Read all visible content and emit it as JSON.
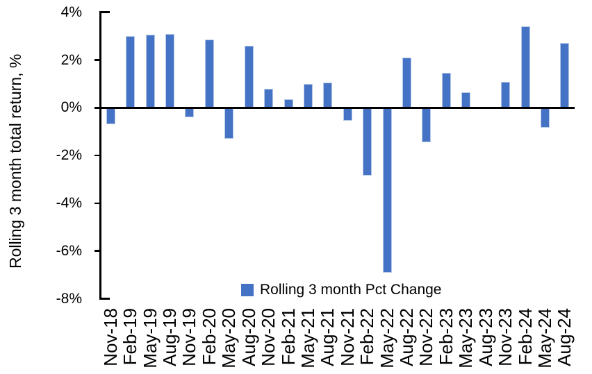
{
  "chart_data": {
    "type": "bar",
    "title": "",
    "ylabel": "Rolling 3 month total return, %",
    "xlabel": "",
    "ylim": [
      -8,
      4
    ],
    "grid": false,
    "yticks": [
      {
        "value": 4,
        "label": "4%"
      },
      {
        "value": 2,
        "label": "2%"
      },
      {
        "value": 0,
        "label": "0%"
      },
      {
        "value": -2,
        "label": "-2%"
      },
      {
        "value": -4,
        "label": "-4%"
      },
      {
        "value": -6,
        "label": "-6%"
      },
      {
        "value": -8,
        "label": "-8%"
      }
    ],
    "categories": [
      "Nov-18",
      "Feb-19",
      "May-19",
      "Aug-19",
      "Nov-19",
      "Feb-20",
      "May-20",
      "Aug-20",
      "Nov-20",
      "Feb-21",
      "May-21",
      "Aug-21",
      "Nov-21",
      "Feb-22",
      "May-22",
      "Aug-22",
      "Nov-22",
      "Feb-23",
      "May-23",
      "Aug-23",
      "Nov-23",
      "Feb-24",
      "May-24",
      "Aug-24"
    ],
    "series": [
      {
        "name": "Rolling 3 month Pct Change",
        "color": "#4472C4",
        "values": [
          -0.7,
          3.0,
          3.05,
          3.1,
          -0.4,
          2.85,
          -1.3,
          2.6,
          0.8,
          0.35,
          1.0,
          1.05,
          -0.55,
          -2.85,
          -6.9,
          2.1,
          -1.45,
          1.45,
          0.65,
          0.0,
          1.1,
          3.4,
          -0.85,
          2.7
        ]
      }
    ],
    "legend": {
      "position": "bottom-center",
      "label": "Rolling 3 month Pct Change"
    }
  },
  "colors": {
    "bar": "#4472C4",
    "bar_border": "#b4c7e7",
    "axis": "#000000",
    "text": "#000000",
    "background": "#ffffff"
  }
}
